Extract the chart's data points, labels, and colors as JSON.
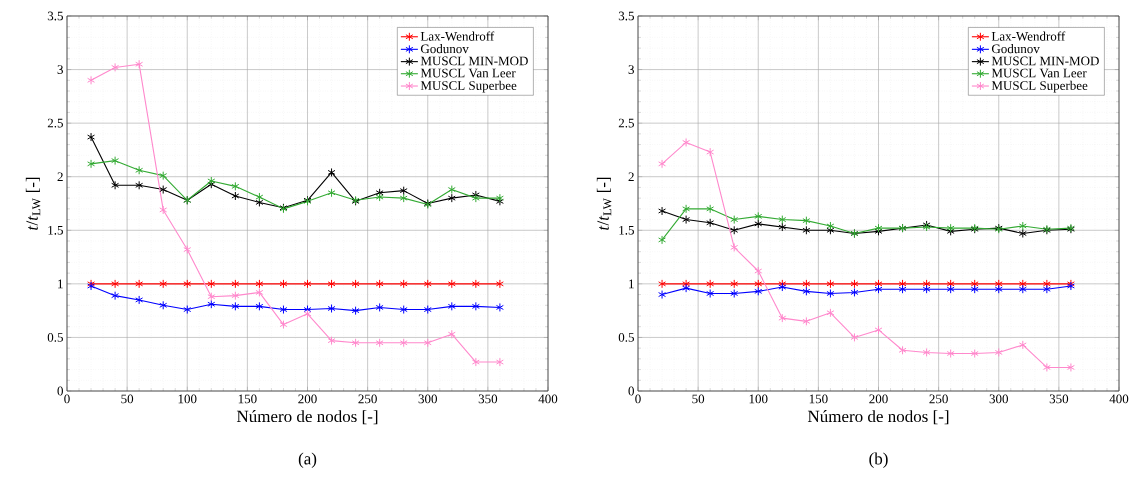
{
  "chart_data": [
    {
      "type": "line",
      "xlabel": "Número de nodos [-]",
      "ylabel": "*t*/*t*$_{LW}$ [-]",
      "annotations": [
        "(a)"
      ],
      "legend": "top right",
      "grid": true,
      "marker": "cross",
      "line_style": "solid",
      "xlim": [
        0,
        400
      ],
      "ylim": [
        0,
        3.5
      ],
      "xticks": [
        0,
        50,
        100,
        150,
        200,
        250,
        300,
        350,
        400
      ],
      "yticks": [
        0,
        0.5,
        1,
        1.5,
        2,
        2.5,
        3,
        3.5
      ],
      "x": [
        20,
        40,
        60,
        80,
        100,
        120,
        140,
        160,
        180,
        200,
        220,
        240,
        260,
        280,
        300,
        320,
        340,
        360
      ],
      "series": [
        {
          "name": "Lax-Wendroff",
          "color": "#ff0000",
          "values": [
            1,
            1,
            1,
            1,
            1,
            1,
            1,
            1,
            1,
            1,
            1,
            1,
            1,
            1,
            1,
            1,
            1,
            1
          ]
        },
        {
          "name": "Godunov",
          "color": "#0000ff",
          "values": [
            0.98,
            0.89,
            0.85,
            0.8,
            0.76,
            0.81,
            0.79,
            0.79,
            0.76,
            0.76,
            0.77,
            0.75,
            0.78,
            0.76,
            0.76,
            0.79,
            0.79,
            0.78
          ]
        },
        {
          "name": "MUSCL MIN-MOD",
          "color": "#000000",
          "values": [
            2.37,
            1.92,
            1.92,
            1.88,
            1.78,
            1.93,
            1.82,
            1.76,
            1.71,
            1.78,
            2.04,
            1.77,
            1.85,
            1.87,
            1.75,
            1.8,
            1.83,
            1.77
          ]
        },
        {
          "name": "MUSCL Van Leer",
          "color": "#33aa33",
          "values": [
            2.12,
            2.15,
            2.06,
            2.01,
            1.78,
            1.96,
            1.91,
            1.81,
            1.7,
            1.77,
            1.85,
            1.78,
            1.81,
            1.8,
            1.74,
            1.88,
            1.8,
            1.8
          ]
        },
        {
          "name": "MUSCL Superbee",
          "color": "#ff88cc",
          "values": [
            2.9,
            3.02,
            3.05,
            1.69,
            1.32,
            0.88,
            0.89,
            0.92,
            0.62,
            0.72,
            0.47,
            0.45,
            0.45,
            0.45,
            0.45,
            0.53,
            0.27,
            0.27
          ]
        }
      ]
    },
    {
      "type": "line",
      "xlabel": "Número de nodos [-]",
      "ylabel": "*t*/*t*$_{LW}$ [-]",
      "annotations": [
        "(b)"
      ],
      "legend": "top right",
      "grid": true,
      "marker": "cross",
      "line_style": "solid",
      "xlim": [
        0,
        400
      ],
      "ylim": [
        0,
        3.5
      ],
      "xticks": [
        0,
        50,
        100,
        150,
        200,
        250,
        300,
        350,
        400
      ],
      "yticks": [
        0,
        0.5,
        1,
        1.5,
        2,
        2.5,
        3,
        3.5
      ],
      "x": [
        20,
        40,
        60,
        80,
        100,
        120,
        140,
        160,
        180,
        200,
        220,
        240,
        260,
        280,
        300,
        320,
        340,
        360
      ],
      "series": [
        {
          "name": "Lax-Wendroff",
          "color": "#ff0000",
          "values": [
            1,
            1,
            1,
            1,
            1,
            1,
            1,
            1,
            1,
            1,
            1,
            1,
            1,
            1,
            1,
            1,
            1,
            1
          ]
        },
        {
          "name": "Godunov",
          "color": "#0000ff",
          "values": [
            0.9,
            0.96,
            0.91,
            0.91,
            0.93,
            0.97,
            0.93,
            0.91,
            0.92,
            0.95,
            0.95,
            0.95,
            0.95,
            0.95,
            0.95,
            0.95,
            0.95,
            0.98
          ]
        },
        {
          "name": "MUSCL MIN-MOD",
          "color": "#000000",
          "values": [
            1.68,
            1.6,
            1.57,
            1.5,
            1.56,
            1.53,
            1.5,
            1.5,
            1.47,
            1.49,
            1.52,
            1.55,
            1.49,
            1.51,
            1.52,
            1.47,
            1.5,
            1.51
          ]
        },
        {
          "name": "MUSCL Van Leer",
          "color": "#33aa33",
          "values": [
            1.41,
            1.7,
            1.7,
            1.6,
            1.63,
            1.6,
            1.59,
            1.54,
            1.47,
            1.52,
            1.52,
            1.53,
            1.52,
            1.52,
            1.51,
            1.54,
            1.51,
            1.52
          ]
        },
        {
          "name": "MUSCL Superbee",
          "color": "#ff88cc",
          "values": [
            2.12,
            2.32,
            2.23,
            1.34,
            1.12,
            0.68,
            0.65,
            0.73,
            0.5,
            0.57,
            0.38,
            0.36,
            0.35,
            0.35,
            0.36,
            0.43,
            0.22,
            0.22
          ]
        }
      ]
    }
  ]
}
